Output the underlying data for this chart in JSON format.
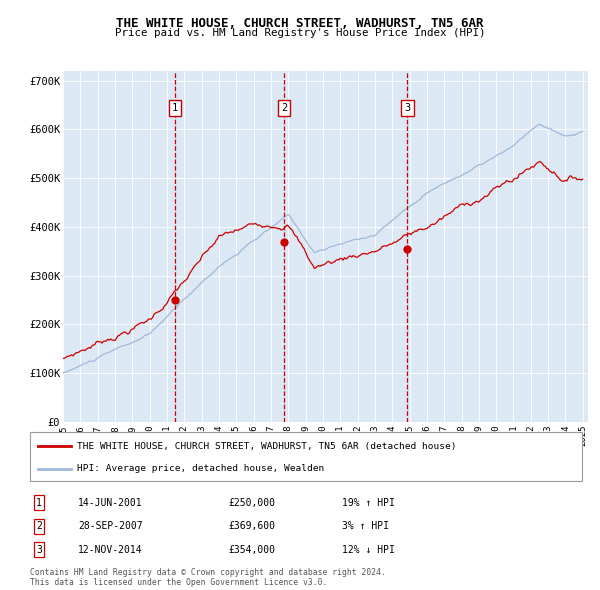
{
  "title": "THE WHITE HOUSE, CHURCH STREET, WADHURST, TN5 6AR",
  "subtitle": "Price paid vs. HM Land Registry's House Price Index (HPI)",
  "background_color": "#dce9f5",
  "plot_bg_color": "#dce9f5",
  "hpi_color": "#a0b8d8",
  "price_color": "#cc0000",
  "dashed_color": "#cc0000",
  "ylim": [
    0,
    720000
  ],
  "yticks": [
    0,
    100000,
    200000,
    300000,
    400000,
    500000,
    600000,
    700000
  ],
  "ytick_labels": [
    "£0",
    "£100K",
    "£200K",
    "£300K",
    "£400K",
    "£500K",
    "£600K",
    "£700K"
  ],
  "x_start_year": 1995,
  "x_end_year": 2025,
  "sale_dates": [
    2001.45,
    2007.75,
    2014.87
  ],
  "sale_prices": [
    250000,
    369600,
    354000
  ],
  "sale_labels": [
    "1",
    "2",
    "3"
  ],
  "legend_line1": "THE WHITE HOUSE, CHURCH STREET, WADHURST, TN5 6AR (detached house)",
  "legend_line2": "HPI: Average price, detached house, Wealden",
  "table_entries": [
    [
      "1",
      "14-JUN-2001",
      "£250,000",
      "19% ↑ HPI"
    ],
    [
      "2",
      "28-SEP-2007",
      "£369,600",
      "3% ↑ HPI"
    ],
    [
      "3",
      "12-NOV-2014",
      "£354,000",
      "12% ↓ HPI"
    ]
  ],
  "footnote": "Contains HM Land Registry data © Crown copyright and database right 2024.\nThis data is licensed under the Open Government Licence v3.0."
}
